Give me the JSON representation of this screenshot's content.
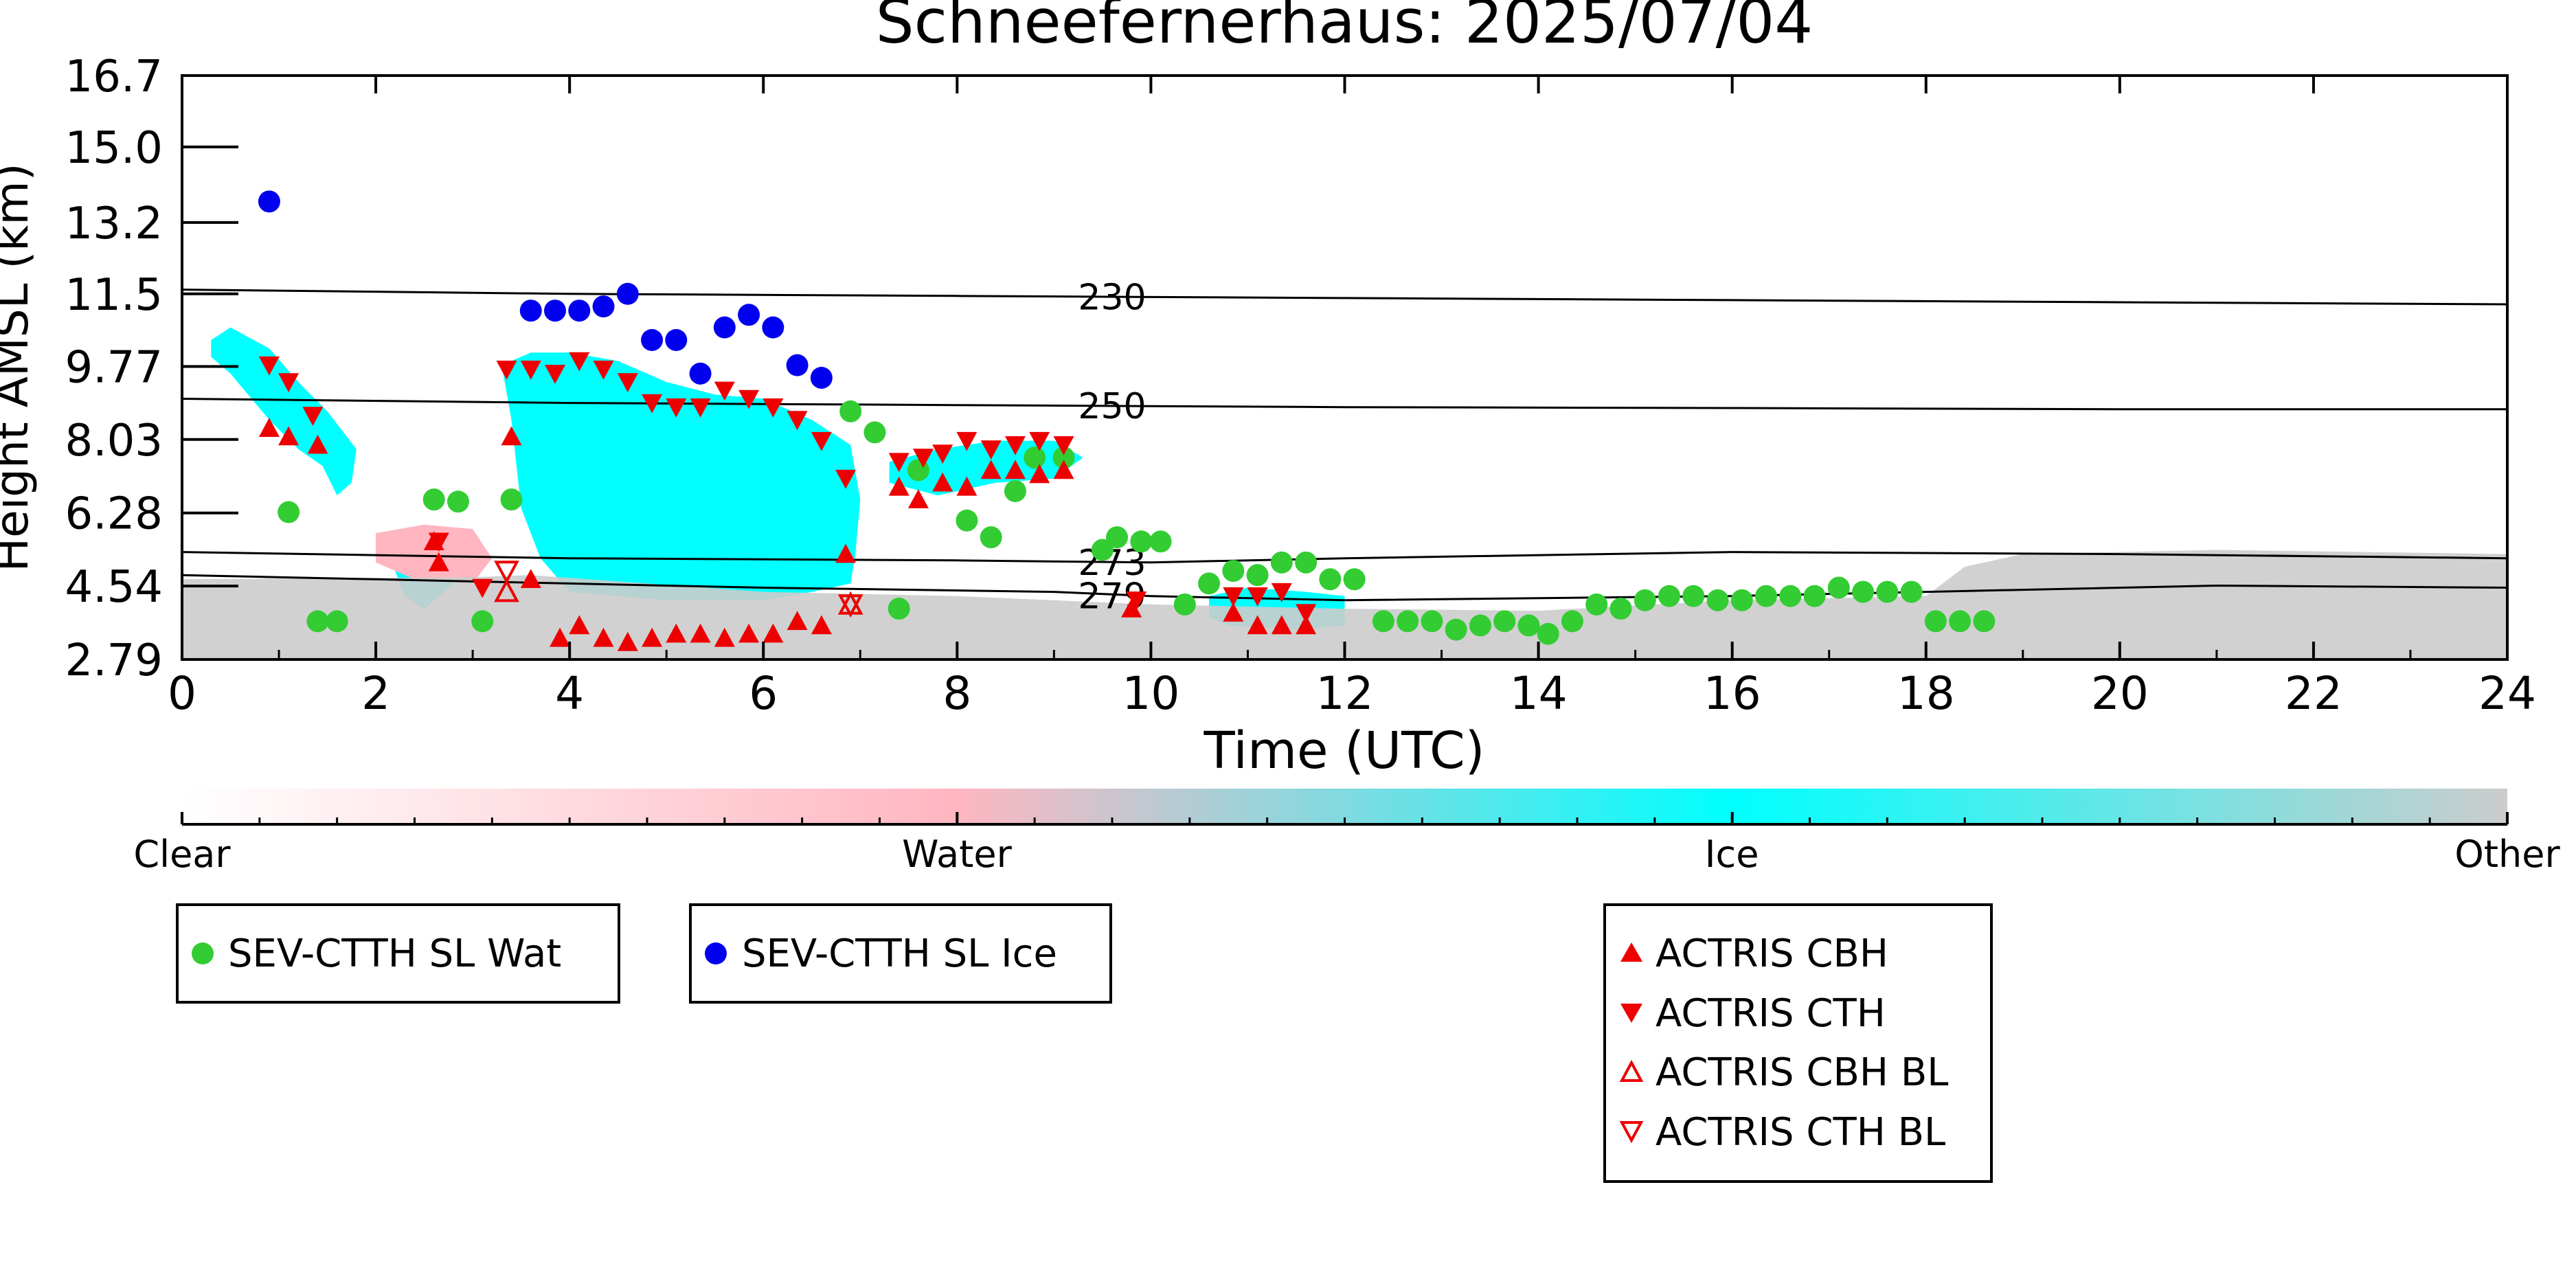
{
  "chart_data": {
    "type": "scatter",
    "title": "Schneefernerhaus: 2025/07/04",
    "xlabel": "Time (UTC)",
    "ylabel": "Height AMSL (km)",
    "xlim": [
      0,
      24
    ],
    "ylim": [
      2.79,
      16.7
    ],
    "x_ticks": [
      "0",
      "2",
      "4",
      "6",
      "8",
      "10",
      "12",
      "14",
      "16",
      "18",
      "20",
      "22",
      "24"
    ],
    "y_ticks": [
      "2.79",
      "4.54",
      "6.28",
      "8.03",
      "9.77",
      "11.5",
      "13.2",
      "15.0",
      "16.7"
    ],
    "grid": false,
    "colors": {
      "sev_wat": "#33cc33",
      "sev_ice": "#0000ee",
      "actris": "#ee0000",
      "ice_mask": "#00ffff",
      "other_mask": "#cccccc",
      "water_mask": "#ffb6c1"
    },
    "isotherms": [
      {
        "label": "230",
        "x": [
          0,
          4,
          8,
          12,
          16,
          20,
          24
        ],
        "y": [
          11.6,
          11.5,
          11.45,
          11.4,
          11.35,
          11.3,
          11.25
        ]
      },
      {
        "label": "250",
        "x": [
          0,
          4,
          8,
          12,
          16,
          20,
          24
        ],
        "y": [
          9.0,
          8.9,
          8.85,
          8.8,
          8.78,
          8.75,
          8.75
        ]
      },
      {
        "label": "273",
        "x": [
          0,
          4,
          8,
          10,
          12,
          16,
          20,
          24
        ],
        "y": [
          5.35,
          5.2,
          5.15,
          5.1,
          5.2,
          5.35,
          5.3,
          5.2
        ]
      },
      {
        "label": "279",
        "x": [
          0,
          2,
          4,
          6,
          9,
          10,
          12,
          16,
          18,
          21,
          24
        ],
        "y": [
          4.8,
          4.7,
          4.6,
          4.5,
          4.4,
          4.3,
          4.2,
          4.3,
          4.4,
          4.55,
          4.5
        ]
      }
    ],
    "series": [
      {
        "name": "SEV-CTTH SL Wat",
        "marker": "circle",
        "points": [
          [
            1.1,
            6.3
          ],
          [
            1.4,
            3.7
          ],
          [
            1.6,
            3.7
          ],
          [
            2.6,
            6.6
          ],
          [
            2.85,
            6.55
          ],
          [
            3.1,
            3.7
          ],
          [
            3.4,
            6.6
          ],
          [
            6.9,
            8.7
          ],
          [
            7.15,
            8.2
          ],
          [
            7.4,
            4.0
          ],
          [
            7.6,
            7.3
          ],
          [
            8.1,
            6.1
          ],
          [
            8.35,
            5.7
          ],
          [
            8.6,
            6.8
          ],
          [
            8.8,
            7.6
          ],
          [
            9.1,
            7.6
          ],
          [
            9.5,
            5.4
          ],
          [
            9.65,
            5.7
          ],
          [
            9.9,
            5.6
          ],
          [
            10.1,
            5.6
          ],
          [
            10.35,
            4.1
          ],
          [
            10.6,
            4.6
          ],
          [
            10.85,
            4.9
          ],
          [
            11.1,
            4.8
          ],
          [
            11.35,
            5.1
          ],
          [
            11.6,
            5.1
          ],
          [
            11.85,
            4.7
          ],
          [
            12.1,
            4.7
          ],
          [
            12.4,
            3.7
          ],
          [
            12.65,
            3.7
          ],
          [
            12.9,
            3.7
          ],
          [
            13.15,
            3.5
          ],
          [
            13.4,
            3.6
          ],
          [
            13.65,
            3.7
          ],
          [
            13.9,
            3.6
          ],
          [
            14.1,
            3.4
          ],
          [
            14.35,
            3.7
          ],
          [
            14.6,
            4.1
          ],
          [
            14.85,
            4.0
          ],
          [
            15.1,
            4.2
          ],
          [
            15.35,
            4.3
          ],
          [
            15.6,
            4.3
          ],
          [
            15.85,
            4.2
          ],
          [
            16.1,
            4.2
          ],
          [
            16.35,
            4.3
          ],
          [
            16.6,
            4.3
          ],
          [
            16.85,
            4.3
          ],
          [
            17.1,
            4.5
          ],
          [
            17.35,
            4.4
          ],
          [
            17.6,
            4.4
          ],
          [
            17.85,
            4.4
          ],
          [
            18.1,
            3.7
          ],
          [
            18.35,
            3.7
          ],
          [
            18.6,
            3.7
          ]
        ]
      },
      {
        "name": "SEV-CTTH SL Ice",
        "marker": "circle",
        "points": [
          [
            0.9,
            13.7
          ],
          [
            3.6,
            11.1
          ],
          [
            3.85,
            11.1
          ],
          [
            4.1,
            11.1
          ],
          [
            4.35,
            11.2
          ],
          [
            4.6,
            11.5
          ],
          [
            4.85,
            10.4
          ],
          [
            5.1,
            10.4
          ],
          [
            5.35,
            9.6
          ],
          [
            5.6,
            10.7
          ],
          [
            5.85,
            11.0
          ],
          [
            6.1,
            10.7
          ],
          [
            6.35,
            9.8
          ],
          [
            6.6,
            9.5
          ]
        ]
      },
      {
        "name": "ACTRIS CBH",
        "marker": "triangle-up",
        "points": [
          [
            0.9,
            8.3
          ],
          [
            1.1,
            8.1
          ],
          [
            1.4,
            7.9
          ],
          [
            2.6,
            5.6
          ],
          [
            2.65,
            5.1
          ],
          [
            3.4,
            8.1
          ],
          [
            3.6,
            4.7
          ],
          [
            3.9,
            3.3
          ],
          [
            4.1,
            3.6
          ],
          [
            4.35,
            3.3
          ],
          [
            4.6,
            3.2
          ],
          [
            4.85,
            3.3
          ],
          [
            5.1,
            3.4
          ],
          [
            5.35,
            3.4
          ],
          [
            5.6,
            3.3
          ],
          [
            5.85,
            3.4
          ],
          [
            6.1,
            3.4
          ],
          [
            6.35,
            3.7
          ],
          [
            6.6,
            3.6
          ],
          [
            6.85,
            5.3
          ],
          [
            7.4,
            6.9
          ],
          [
            7.6,
            6.6
          ],
          [
            7.85,
            7.0
          ],
          [
            8.1,
            6.9
          ],
          [
            8.35,
            7.3
          ],
          [
            8.6,
            7.3
          ],
          [
            8.85,
            7.2
          ],
          [
            9.1,
            7.3
          ],
          [
            9.8,
            4.0
          ],
          [
            10.85,
            3.9
          ],
          [
            11.1,
            3.6
          ],
          [
            11.35,
            3.6
          ],
          [
            11.6,
            3.6
          ]
        ]
      },
      {
        "name": "ACTRIS CTH",
        "marker": "triangle-down",
        "points": [
          [
            0.9,
            9.8
          ],
          [
            1.1,
            9.4
          ],
          [
            1.35,
            8.6
          ],
          [
            2.65,
            5.6
          ],
          [
            3.1,
            4.5
          ],
          [
            3.35,
            9.7
          ],
          [
            3.6,
            9.7
          ],
          [
            3.85,
            9.6
          ],
          [
            4.1,
            9.9
          ],
          [
            4.35,
            9.7
          ],
          [
            4.6,
            9.4
          ],
          [
            4.85,
            8.9
          ],
          [
            5.1,
            8.8
          ],
          [
            5.35,
            8.8
          ],
          [
            5.6,
            9.2
          ],
          [
            5.85,
            9.0
          ],
          [
            6.1,
            8.8
          ],
          [
            6.35,
            8.5
          ],
          [
            6.6,
            8.0
          ],
          [
            6.85,
            7.1
          ],
          [
            7.4,
            7.5
          ],
          [
            7.65,
            7.6
          ],
          [
            7.85,
            7.7
          ],
          [
            8.1,
            8.0
          ],
          [
            8.35,
            7.8
          ],
          [
            8.6,
            7.9
          ],
          [
            8.85,
            8.0
          ],
          [
            9.1,
            7.9
          ],
          [
            9.85,
            4.2
          ],
          [
            10.85,
            4.3
          ],
          [
            11.1,
            4.3
          ],
          [
            11.35,
            4.4
          ],
          [
            11.6,
            3.9
          ]
        ]
      },
      {
        "name": "ACTRIS CBH BL",
        "marker": "triangle-up-open",
        "points": [
          [
            3.35,
            4.4
          ],
          [
            6.9,
            4.1
          ]
        ]
      },
      {
        "name": "ACTRIS CTH BL",
        "marker": "triangle-down-open",
        "points": [
          [
            3.35,
            4.9
          ],
          [
            6.9,
            4.1
          ]
        ]
      }
    ],
    "mask_regions": [
      {
        "class": "ice",
        "poly": [
          [
            0.3,
            10.4
          ],
          [
            0.5,
            10.7
          ],
          [
            0.9,
            10.2
          ],
          [
            1.2,
            9.4
          ],
          [
            1.5,
            8.7
          ],
          [
            1.8,
            7.8
          ],
          [
            1.75,
            7.0
          ],
          [
            1.6,
            6.7
          ],
          [
            1.45,
            7.4
          ],
          [
            1.2,
            7.8
          ],
          [
            0.9,
            8.5
          ],
          [
            0.5,
            9.6
          ],
          [
            0.3,
            10.0
          ]
        ]
      },
      {
        "class": "ice",
        "poly": [
          [
            3.3,
            9.8
          ],
          [
            3.6,
            10.1
          ],
          [
            4.0,
            10.1
          ],
          [
            4.5,
            9.9
          ],
          [
            5.0,
            9.4
          ],
          [
            5.5,
            9.1
          ],
          [
            6.0,
            9.0
          ],
          [
            6.5,
            8.5
          ],
          [
            6.9,
            7.9
          ],
          [
            7.0,
            6.6
          ],
          [
            6.95,
            5.3
          ],
          [
            6.9,
            4.6
          ],
          [
            6.5,
            4.4
          ],
          [
            6.0,
            4.2
          ],
          [
            5.5,
            4.2
          ],
          [
            5.0,
            4.2
          ],
          [
            4.5,
            4.3
          ],
          [
            4.0,
            4.4
          ],
          [
            3.7,
            5.2
          ],
          [
            3.5,
            6.4
          ],
          [
            3.4,
            8.5
          ]
        ]
      },
      {
        "class": "ice",
        "poly": [
          [
            7.3,
            7.5
          ],
          [
            7.8,
            7.8
          ],
          [
            8.4,
            8.0
          ],
          [
            9.0,
            8.0
          ],
          [
            9.3,
            7.6
          ],
          [
            9.0,
            7.1
          ],
          [
            8.4,
            7.0
          ],
          [
            7.8,
            6.7
          ],
          [
            7.3,
            7.0
          ]
        ]
      },
      {
        "class": "ice",
        "poly": [
          [
            10.6,
            4.3
          ],
          [
            11.0,
            4.5
          ],
          [
            11.6,
            4.4
          ],
          [
            12.0,
            4.3
          ],
          [
            12.0,
            3.6
          ],
          [
            11.5,
            3.5
          ],
          [
            10.8,
            3.6
          ],
          [
            10.6,
            3.8
          ]
        ]
      },
      {
        "class": "ice",
        "poly": [
          [
            2.2,
            5.6
          ],
          [
            2.6,
            5.7
          ],
          [
            2.9,
            5.4
          ],
          [
            2.8,
            4.6
          ],
          [
            2.5,
            4.0
          ],
          [
            2.3,
            4.3
          ],
          [
            2.2,
            4.9
          ]
        ]
      },
      {
        "class": "water",
        "poly": [
          [
            2.0,
            5.8
          ],
          [
            2.5,
            6.0
          ],
          [
            3.0,
            5.9
          ],
          [
            3.2,
            5.2
          ],
          [
            3.0,
            4.6
          ],
          [
            2.4,
            4.7
          ],
          [
            2.0,
            5.1
          ]
        ]
      },
      {
        "class": "other",
        "poly": [
          [
            0,
            4.7
          ],
          [
            3.0,
            4.75
          ],
          [
            3.6,
            4.8
          ],
          [
            6.0,
            4.4
          ],
          [
            8.0,
            4.3
          ],
          [
            10.0,
            4.1
          ],
          [
            12.0,
            4.0
          ],
          [
            14.0,
            3.95
          ],
          [
            16.0,
            4.2
          ],
          [
            18.0,
            4.3
          ],
          [
            18.4,
            5.0
          ],
          [
            19.0,
            5.3
          ],
          [
            21.0,
            5.4
          ],
          [
            24.0,
            5.3
          ],
          [
            24.0,
            2.79
          ],
          [
            0,
            2.79
          ]
        ]
      }
    ],
    "colorbar": {
      "labels": [
        "Clear",
        "Water",
        "Ice",
        "Other"
      ],
      "stops": [
        "#ffffff",
        "#ffb6c1",
        "#00ffff",
        "#cccccc"
      ]
    },
    "legends": [
      {
        "id": "legend-sev",
        "entries": [
          "SEV-CTTH SL Wat",
          "SEV-CTTH SL Ice"
        ]
      },
      {
        "id": "legend-actris",
        "entries": [
          "ACTRIS CBH",
          "ACTRIS CTH",
          "ACTRIS CBH BL",
          "ACTRIS CTH BL"
        ]
      }
    ]
  }
}
